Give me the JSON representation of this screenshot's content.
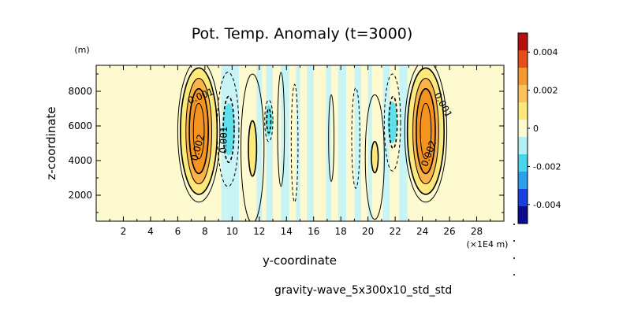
{
  "chart_data": {
    "type": "heatmap",
    "title": "Pot. Temp. Anomaly (t=3000)",
    "xlabel": "y-coordinate",
    "ylabel": "z-coordinate",
    "x_unit": "(×1E4 m)",
    "y_unit": "(m)",
    "xlim": [
      0,
      30
    ],
    "ylim": [
      500,
      9500
    ],
    "x_ticks": [
      2,
      4,
      6,
      8,
      10,
      12,
      14,
      16,
      18,
      20,
      22,
      24,
      26,
      28
    ],
    "y_ticks": [
      2000,
      4000,
      6000,
      8000
    ],
    "colorbar": {
      "min": -0.005,
      "max": 0.005,
      "ticks": [
        0.004,
        0.002,
        0,
        -0.002,
        -0.004
      ],
      "tick_labels": [
        "0.004",
        "0.002",
        "0",
        "-0.002",
        "-0.004"
      ],
      "colors": [
        "#0b0e8c",
        "#1a3fe0",
        "#2aa0ea",
        "#48d6ea",
        "#b2f0f4",
        "#fdfad0",
        "#fde97a",
        "#fdc35b",
        "#f59a30",
        "#e84d1c",
        "#b50f0f"
      ]
    },
    "contour_labels": [
      {
        "text": "0.001",
        "x": 7.7,
        "z": 7700,
        "angle": -22
      },
      {
        "text": "0.002",
        "x": 7.5,
        "z": 4750,
        "angle": -75
      },
      {
        "text": "0.001",
        "x": 9.4,
        "z": 5200,
        "angle": -88
      },
      {
        "text": "0.001",
        "x": 25.5,
        "z": 7200,
        "angle": 62
      },
      {
        "text": "0.002",
        "x": 24.5,
        "z": 4400,
        "angle": -70
      }
    ],
    "features": [
      {
        "kind": "warm",
        "x": 7.55,
        "z": 5700,
        "amp": 0.003
      },
      {
        "kind": "cold",
        "x": 9.6,
        "z": 5800,
        "amp": -0.0012
      },
      {
        "kind": "warm",
        "x": 11.5,
        "z": 4700,
        "amp": 0.0012
      },
      {
        "kind": "cold",
        "x": 12.7,
        "z": 6300,
        "amp": -0.0008
      },
      {
        "kind": "warm",
        "x": 13.6,
        "z": 5800,
        "amp": 0.0005
      },
      {
        "kind": "cold",
        "x": 19.1,
        "z": 5300,
        "amp": -0.0005
      },
      {
        "kind": "warm",
        "x": 20.5,
        "z": 4200,
        "amp": 0.0008
      },
      {
        "kind": "cold",
        "x": 21.8,
        "z": 6200,
        "amp": -0.0011
      },
      {
        "kind": "warm",
        "x": 24.25,
        "z": 5700,
        "amp": 0.003
      }
    ],
    "footer_text": "gravity-wave_5x300x10_std_std"
  }
}
